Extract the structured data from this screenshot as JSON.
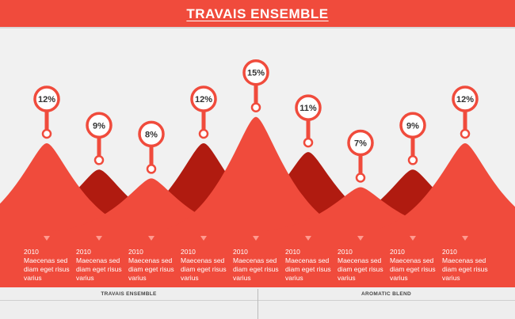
{
  "header": {
    "title": "TRAVAIS ENSEMBLE"
  },
  "colors": {
    "accent": "#f04b3c",
    "dark": "#b01b10",
    "background": "#f1f1f1"
  },
  "chart_data": {
    "type": "area",
    "values": [
      12,
      9,
      8,
      12,
      15,
      11,
      7,
      9,
      12
    ],
    "labels": [
      "12%",
      "9%",
      "8%",
      "12%",
      "15%",
      "11%",
      "7%",
      "9%",
      "12%"
    ],
    "series": [
      {
        "values": [
          12,
          9,
          8,
          12,
          15,
          11,
          7,
          9,
          12
        ]
      }
    ]
  },
  "items": [
    {
      "year": "2010",
      "line1": "Maecenas sed",
      "line2": "diam eget risus",
      "line3": "varius"
    },
    {
      "year": "2010",
      "line1": "Maecenas sed",
      "line2": "diam eget risus",
      "line3": "varius"
    },
    {
      "year": "2010",
      "line1": "Maecenas sed",
      "line2": "diam eget risus",
      "line3": "varius"
    },
    {
      "year": "2010",
      "line1": "Maecenas sed",
      "line2": "diam eget risus",
      "line3": "varius"
    },
    {
      "year": "2010",
      "line1": "Maecenas sed",
      "line2": "diam eget risus",
      "line3": "varius"
    },
    {
      "year": "2010",
      "line1": "Maecenas sed",
      "line2": "diam eget risus",
      "line3": "varius"
    },
    {
      "year": "2010",
      "line1": "Maecenas sed",
      "line2": "diam eget risus",
      "line3": "varius"
    },
    {
      "year": "2010",
      "line1": "Maecenas sed",
      "line2": "diam eget risus",
      "line3": "varius"
    },
    {
      "year": "2010",
      "line1": "Maecenas sed",
      "line2": "diam eget risus",
      "line3": "varius"
    }
  ],
  "footer": {
    "left_label": "TRAVAIS ENSEMBLE",
    "right_label": "AROMATIC BLEND"
  }
}
